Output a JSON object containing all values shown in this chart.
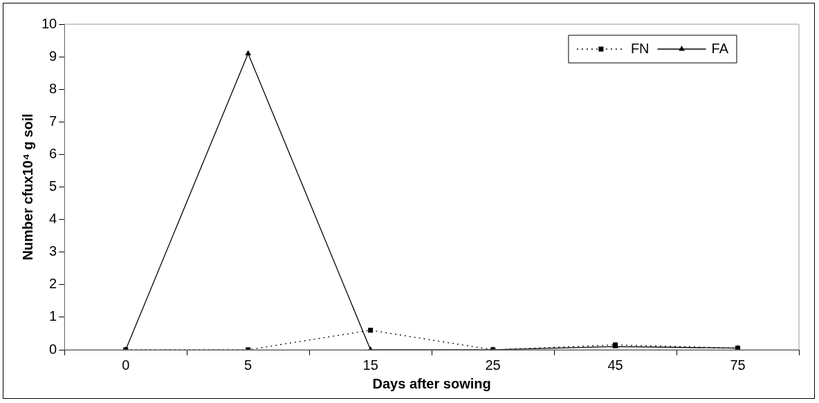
{
  "chart_data": {
    "type": "line",
    "xlabel": "Days after sowing",
    "ylabel": "Number cfux10⁴ g soil",
    "categories": [
      "0",
      "5",
      "15",
      "25",
      "45",
      "75"
    ],
    "ylim": [
      0,
      10
    ],
    "yticks": [
      0,
      1,
      2,
      3,
      4,
      5,
      6,
      7,
      8,
      9,
      10
    ],
    "grid": false,
    "legend": "top right",
    "series": [
      {
        "name": "FN",
        "color": "#000000",
        "values": [
          0,
          0,
          0.6,
          0,
          0.15,
          0.05
        ],
        "marker": "square",
        "line_style": "dotted"
      },
      {
        "name": "FA",
        "color": "#000000",
        "values": [
          0,
          9.1,
          0,
          0,
          0.1,
          0.05
        ],
        "marker": "triangle",
        "line_style": "solid"
      }
    ]
  }
}
